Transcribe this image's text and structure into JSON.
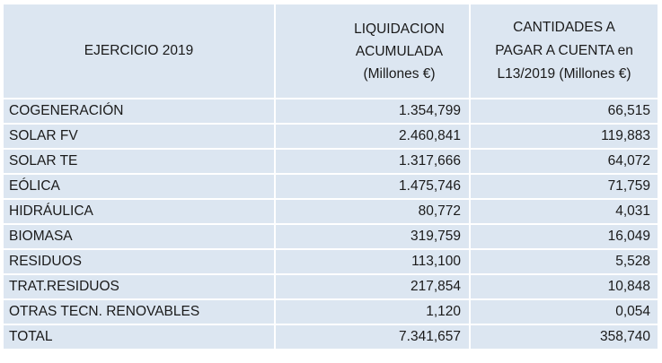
{
  "header": {
    "col1": "EJERCICIO 2019",
    "col2": [
      "LIQUIDACION",
      "ACUMULADA",
      "(Millones €)"
    ],
    "col3": [
      "CANTIDADES A",
      "PAGAR A CUENTA en",
      "L13/2019 (Millones €)"
    ]
  },
  "rows": [
    {
      "name": "COGENERACIÓN",
      "liquidacion": "1.354,799",
      "cantidades": "66,515"
    },
    {
      "name": "SOLAR FV",
      "liquidacion": "2.460,841",
      "cantidades": "119,883"
    },
    {
      "name": "SOLAR TE",
      "liquidacion": "1.317,666",
      "cantidades": "64,072"
    },
    {
      "name": "EÓLICA",
      "liquidacion": "1.475,746",
      "cantidades": "71,759"
    },
    {
      "name": "HIDRÁULICA",
      "liquidacion": "80,772",
      "cantidades": "4,031"
    },
    {
      "name": "BIOMASA",
      "liquidacion": "319,759",
      "cantidades": "16,049"
    },
    {
      "name": "RESIDUOS",
      "liquidacion": "113,100",
      "cantidades": "5,528"
    },
    {
      "name": "TRAT.RESIDUOS",
      "liquidacion": "217,854",
      "cantidades": "10,848"
    },
    {
      "name": "OTRAS TECN. RENOVABLES",
      "liquidacion": "1,120",
      "cantidades": "0,054"
    },
    {
      "name": "TOTAL",
      "liquidacion": "7.341,657",
      "cantidades": "358,740"
    }
  ],
  "colors": {
    "cell_background": "#dce6f1",
    "grid_lines": "#ffffff",
    "text": "#1a1a1a"
  }
}
